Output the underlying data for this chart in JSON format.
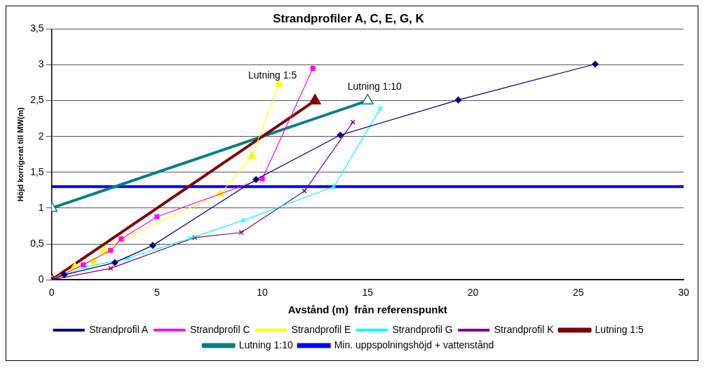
{
  "chart_data": {
    "type": "line",
    "title": "Strandprofiler A, C, E, G, K",
    "xlabel": "Avstånd (m)  från referenspunkt",
    "ylabel": "Höjd korrigerat till MW(m)",
    "xlim": [
      0,
      30
    ],
    "xticks": [
      0,
      5,
      10,
      15,
      20,
      25,
      30
    ],
    "ylim": [
      0,
      3.5
    ],
    "yticks": [
      {
        "value": 0,
        "label": "0"
      },
      {
        "value": 0.5,
        "label": "0,5"
      },
      {
        "value": 1,
        "label": "1"
      },
      {
        "value": 1.5,
        "label": "1,5"
      },
      {
        "value": 2,
        "label": "2"
      },
      {
        "value": 2.5,
        "label": "2,5"
      },
      {
        "value": 3,
        "label": "3"
      },
      {
        "value": 3.5,
        "label": "3,5"
      }
    ],
    "grid": "y",
    "legend": "bottom",
    "series": [
      {
        "name": "Strandprofil A",
        "color": "#000080",
        "marker": "diamond",
        "x": [
          0,
          0.6,
          3,
          4.8,
          9.7,
          13.7,
          19.3,
          25.8
        ],
        "values": [
          0,
          0.07,
          0.24,
          0.48,
          1.4,
          2.02,
          2.51,
          3.01
        ]
      },
      {
        "name": "Strandprofil C",
        "color": "#ff00ff",
        "marker": "square",
        "x": [
          0,
          1.5,
          2.8,
          3.3,
          5,
          10,
          12.4
        ],
        "values": [
          0,
          0.21,
          0.41,
          0.57,
          0.88,
          1.41,
          2.95
        ]
      },
      {
        "name": "Strandprofil E",
        "color": "#ffff00",
        "marker": "triangle",
        "x": [
          0,
          1.1,
          2,
          2.5,
          3.3,
          8,
          9.5,
          10.8
        ],
        "values": [
          0,
          0.18,
          0.26,
          0.4,
          0.56,
          1.2,
          1.72,
          2.73
        ]
      },
      {
        "name": "Strandprofil G",
        "color": "#00ffff",
        "marker": "cross",
        "x": [
          0,
          1.6,
          3.6,
          6.6,
          9.1,
          13.4,
          15.6
        ],
        "values": [
          0,
          0.18,
          0.3,
          0.58,
          0.83,
          1.3,
          2.39
        ]
      },
      {
        "name": "Strandprofil K",
        "color": "#800080",
        "marker": "cross",
        "x": [
          0,
          2.8,
          6.8,
          9,
          12,
          14.3
        ],
        "values": [
          0,
          0.16,
          0.59,
          0.66,
          1.24,
          2.2
        ]
      },
      {
        "name": "Lutning 1:5",
        "color": "#800000",
        "marker": "triangle",
        "x": [
          0,
          12.5
        ],
        "values": [
          0,
          2.5
        ]
      },
      {
        "name": "Lutning 1:10",
        "color": "#008080",
        "marker": "triangle",
        "x": [
          0,
          15
        ],
        "values": [
          1,
          2.5
        ]
      }
    ],
    "ref_lines": [
      {
        "axis": "y",
        "value": 1.3,
        "label": "Min. uppspolningshöjd + vattenstånd",
        "color": "#0000ff"
      }
    ],
    "annotations": [
      {
        "text": "Lutning 1:5",
        "x": 12.5,
        "y": 2.5
      },
      {
        "text": "Lutning 1:10",
        "x": 15,
        "y": 2.5
      }
    ]
  }
}
